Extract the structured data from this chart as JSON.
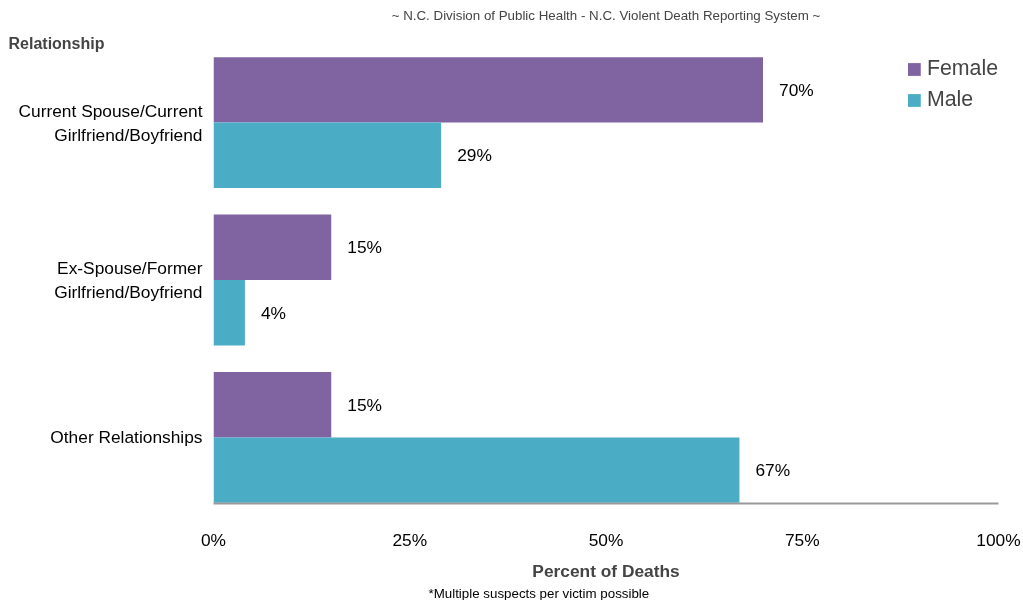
{
  "chart_data": {
    "type": "bar",
    "orientation": "horizontal",
    "subtitle": "~ N.C. Division of Public Health - N.C. Violent Death Reporting System ~",
    "ylabel": "Relationship",
    "xlabel": "Percent of Deaths",
    "categories": [
      "Current Spouse/Current Girlfriend/Boyfriend",
      "Ex-Spouse/Former Girlfriend/Boyfriend",
      "Other Relationships"
    ],
    "series": [
      {
        "name": "Female",
        "color": "#8064a2",
        "values": [
          70,
          15,
          15
        ],
        "value_labels": [
          "70%",
          "15%",
          "15%"
        ]
      },
      {
        "name": "Male",
        "color": "#4bacc6",
        "values": [
          29,
          4,
          67
        ],
        "value_labels": [
          "29%",
          "4%",
          "67%"
        ]
      }
    ],
    "xlim": [
      0,
      100
    ],
    "xticks": [
      {
        "value": 0,
        "label": "0%"
      },
      {
        "value": 25,
        "label": "25%"
      },
      {
        "value": 50,
        "label": "50%"
      },
      {
        "value": 75,
        "label": "75%"
      },
      {
        "value": 100,
        "label": "100%"
      }
    ],
    "grid": false,
    "legend": "top right",
    "annotations": [
      "*Multiple suspects per victim possible"
    ]
  }
}
